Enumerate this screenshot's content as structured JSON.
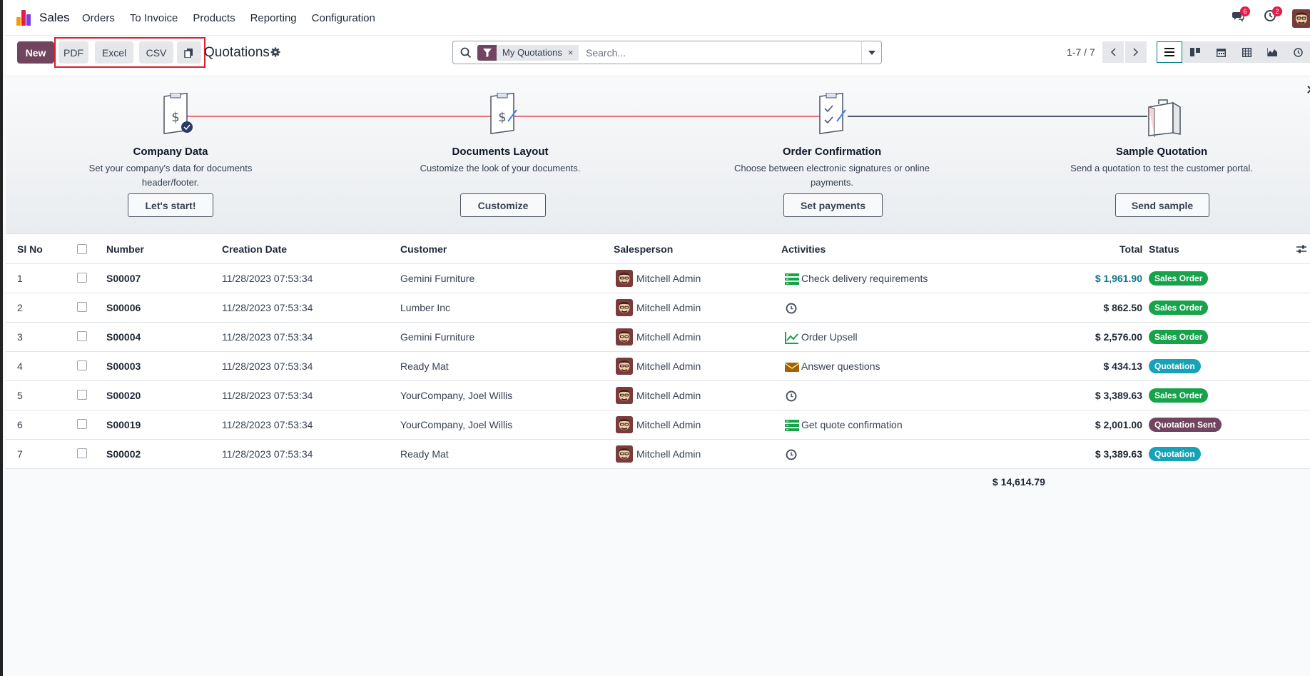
{
  "navbar": {
    "app_name": "Sales",
    "menu": [
      "Orders",
      "To Invoice",
      "Products",
      "Reporting",
      "Configuration"
    ],
    "messages_count": "6",
    "activities_count": "2"
  },
  "control": {
    "new_label": "New",
    "pdf_label": "PDF",
    "excel_label": "Excel",
    "csv_label": "CSV",
    "title": "Quotations",
    "facet_label": "My Quotations",
    "search_placeholder": "Search...",
    "pager": "1-7 / 7"
  },
  "banner": {
    "steps": [
      {
        "title": "Company Data",
        "desc": "Set your company's data for documents header/footer.",
        "button": "Let's start!"
      },
      {
        "title": "Documents Layout",
        "desc": "Customize the look of your documents.",
        "button": "Customize"
      },
      {
        "title": "Order Confirmation",
        "desc": "Choose between electronic signatures or online payments.",
        "button": "Set payments"
      },
      {
        "title": "Sample Quotation",
        "desc": "Send a quotation to test the customer portal.",
        "button": "Send sample"
      }
    ]
  },
  "table": {
    "headers": {
      "sl_no": "Sl No",
      "number": "Number",
      "creation_date": "Creation Date",
      "customer": "Customer",
      "salesperson": "Salesperson",
      "activities": "Activities",
      "total": "Total",
      "status": "Status"
    },
    "rows": [
      {
        "sl": "1",
        "number": "S00007",
        "date": "11/28/2023 07:53:34",
        "customer": "Gemini Furniture",
        "salesperson": "Mitchell Admin",
        "activity": "Check delivery requirements",
        "activity_icon": "todo-list-icon",
        "total": "$ 1,961.90",
        "status": "Sales Order"
      },
      {
        "sl": "2",
        "number": "S00006",
        "date": "11/28/2023 07:53:34",
        "customer": "Lumber Inc",
        "salesperson": "Mitchell Admin",
        "activity": "",
        "activity_icon": "clock-icon",
        "total": "$ 862.50",
        "status": "Sales Order"
      },
      {
        "sl": "3",
        "number": "S00004",
        "date": "11/28/2023 07:53:34",
        "customer": "Gemini Furniture",
        "salesperson": "Mitchell Admin",
        "activity": "Order Upsell",
        "activity_icon": "chart-line-icon",
        "total": "$ 2,576.00",
        "status": "Sales Order"
      },
      {
        "sl": "4",
        "number": "S00003",
        "date": "11/28/2023 07:53:34",
        "customer": "Ready Mat",
        "salesperson": "Mitchell Admin",
        "activity": "Answer questions",
        "activity_icon": "envelope-icon",
        "total": "$ 434.13",
        "status": "Quotation"
      },
      {
        "sl": "5",
        "number": "S00020",
        "date": "11/28/2023 07:53:34",
        "customer": "YourCompany, Joel Willis",
        "salesperson": "Mitchell Admin",
        "activity": "",
        "activity_icon": "clock-icon",
        "total": "$ 3,389.63",
        "status": "Sales Order"
      },
      {
        "sl": "6",
        "number": "S00019",
        "date": "11/28/2023 07:53:34",
        "customer": "YourCompany, Joel Willis",
        "salesperson": "Mitchell Admin",
        "activity": "Get quote confirmation",
        "activity_icon": "todo-list-icon",
        "total": "$ 2,001.00",
        "status": "Quotation Sent"
      },
      {
        "sl": "7",
        "number": "S00002",
        "date": "11/28/2023 07:53:34",
        "customer": "Ready Mat",
        "salesperson": "Mitchell Admin",
        "activity": "",
        "activity_icon": "clock-icon",
        "total": "$ 3,389.63",
        "status": "Quotation"
      }
    ],
    "grand_total": "$ 14,614.79"
  },
  "colors": {
    "brand": "#71445f",
    "sales_order": "#16a34a",
    "quotation": "#17a2b8",
    "quotation_sent": "#71445f",
    "overdue_total": "#0e7490"
  }
}
